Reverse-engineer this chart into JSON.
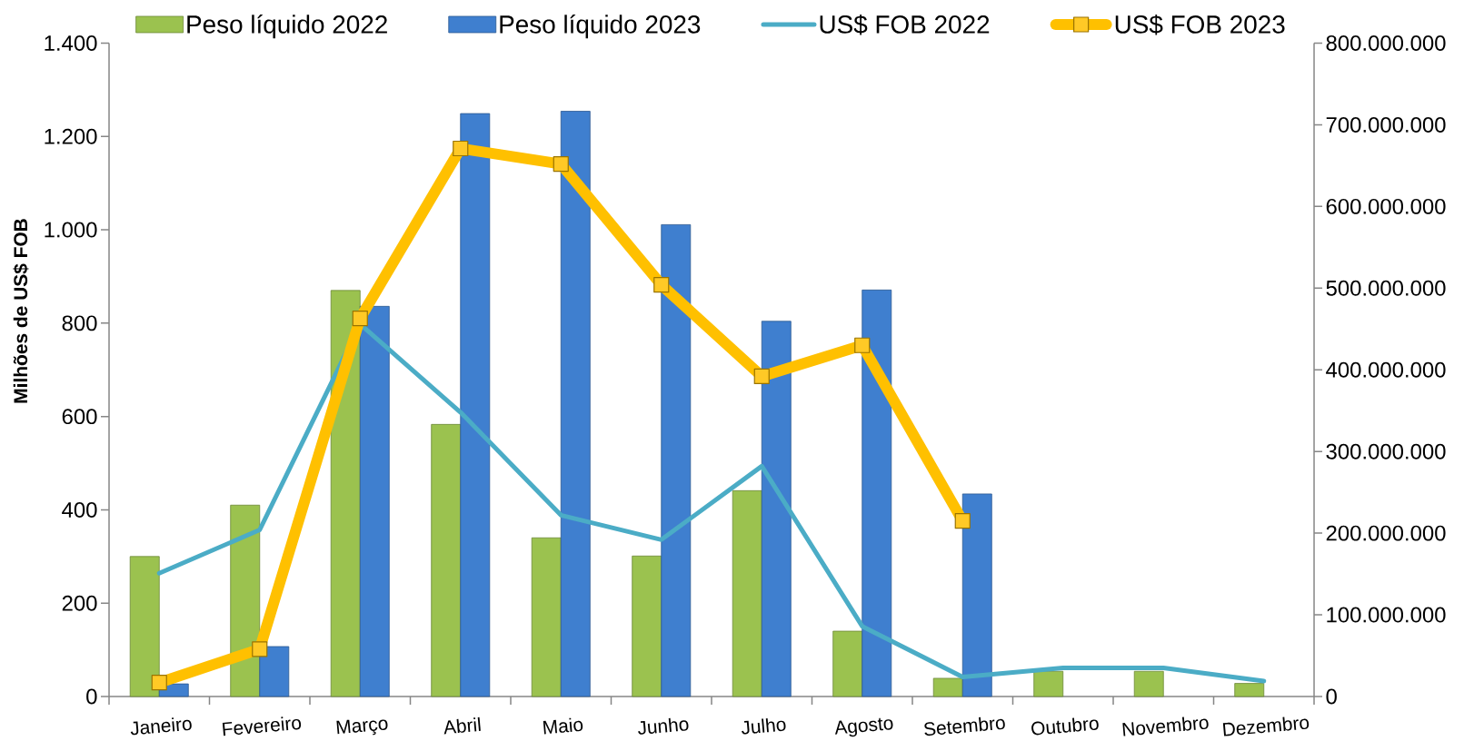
{
  "chart_data": {
    "type": "bar",
    "ylabel": "Milhões de US$ FOB",
    "categories": [
      "Janeiro",
      "Fevereiro",
      "Março",
      "Abril",
      "Maio",
      "Junho",
      "Julho",
      "Agosto",
      "Setembro",
      "Outubro",
      "Novembro",
      "Dezembro"
    ],
    "series": [
      {
        "name": "Peso líquido 2022",
        "color": "#9bc24f",
        "values": [
          300,
          410,
          870,
          583,
          340,
          301,
          441,
          140,
          39,
          54,
          54,
          28
        ]
      },
      {
        "name": "Peso líquido 2023",
        "color": "#3f7fcf",
        "values": [
          27,
          107,
          836,
          1249,
          1254,
          1011,
          804,
          871,
          434,
          null,
          null,
          null
        ]
      },
      {
        "name": "US$ FOB 2022",
        "type": "line",
        "axis": "y2",
        "color": "#4bacc6",
        "values": [
          151000000,
          204000000,
          456000000,
          348000000,
          222000000,
          192000000,
          282000000,
          86000000,
          24000000,
          35000000,
          35000000,
          19000000
        ]
      },
      {
        "name": "US$ FOB 2023",
        "type": "line",
        "axis": "y2",
        "color": "#ffc000",
        "marker": "square",
        "values": [
          17000000,
          58000000,
          463000000,
          671000000,
          652000000,
          504000000,
          392000000,
          430000000,
          215000000,
          null,
          null,
          null
        ]
      }
    ],
    "ylim": [
      0,
      1400
    ],
    "yticks": [
      0,
      200,
      400,
      600,
      800,
      {
        "value": 1000,
        "label": "1.000"
      },
      {
        "value": 1200,
        "label": "1.200"
      },
      {
        "value": 1400,
        "label": "1.400"
      }
    ],
    "y2lim": [
      0,
      800000000
    ],
    "y2ticks": [
      0,
      {
        "value": 100000000,
        "label": "100.000.000"
      },
      {
        "value": 200000000,
        "label": "200.000.000"
      },
      {
        "value": 300000000,
        "label": "300.000.000"
      },
      {
        "value": 400000000,
        "label": "400.000.000"
      },
      {
        "value": 500000000,
        "label": "500.000.000"
      },
      {
        "value": 600000000,
        "label": "600.000.000"
      },
      {
        "value": 700000000,
        "label": "700.000.000"
      },
      {
        "value": 800000000,
        "label": "800.000.000"
      }
    ],
    "legend": "top"
  }
}
